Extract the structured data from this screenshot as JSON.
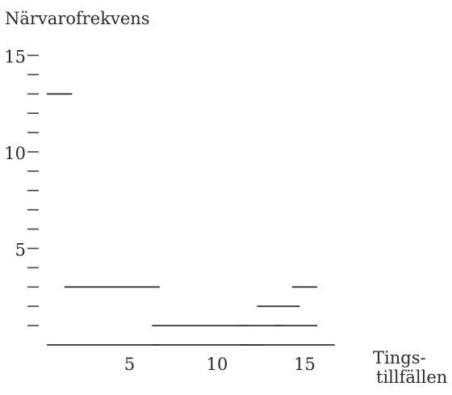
{
  "chart_data": {
    "type": "bar",
    "ylabel": "Närvarofrekvens",
    "xlabel_line1": "Tings-",
    "xlabel_line2": "tillfällen",
    "ylim": [
      0,
      15
    ],
    "y_tick_labels": [
      "5",
      "10",
      "15"
    ],
    "x_tick_labels": [
      "5",
      "10",
      "15"
    ],
    "grid": false,
    "segments": [
      {
        "from": 1,
        "to": 1,
        "y": 13
      },
      {
        "from": 2,
        "to": 6,
        "y": 3
      },
      {
        "from": 1,
        "to": 6,
        "y": 0
      },
      {
        "from": 7,
        "to": 11,
        "y": 1
      },
      {
        "from": 7,
        "to": 12,
        "y": 0
      },
      {
        "from": 12,
        "to": 13,
        "y": 1
      },
      {
        "from": 13,
        "to": 14,
        "y": 2
      },
      {
        "from": 14,
        "to": 15,
        "y": 1
      },
      {
        "from": 15,
        "to": 15,
        "y": 3
      },
      {
        "from": 12,
        "to": 16,
        "y": 0
      }
    ]
  }
}
